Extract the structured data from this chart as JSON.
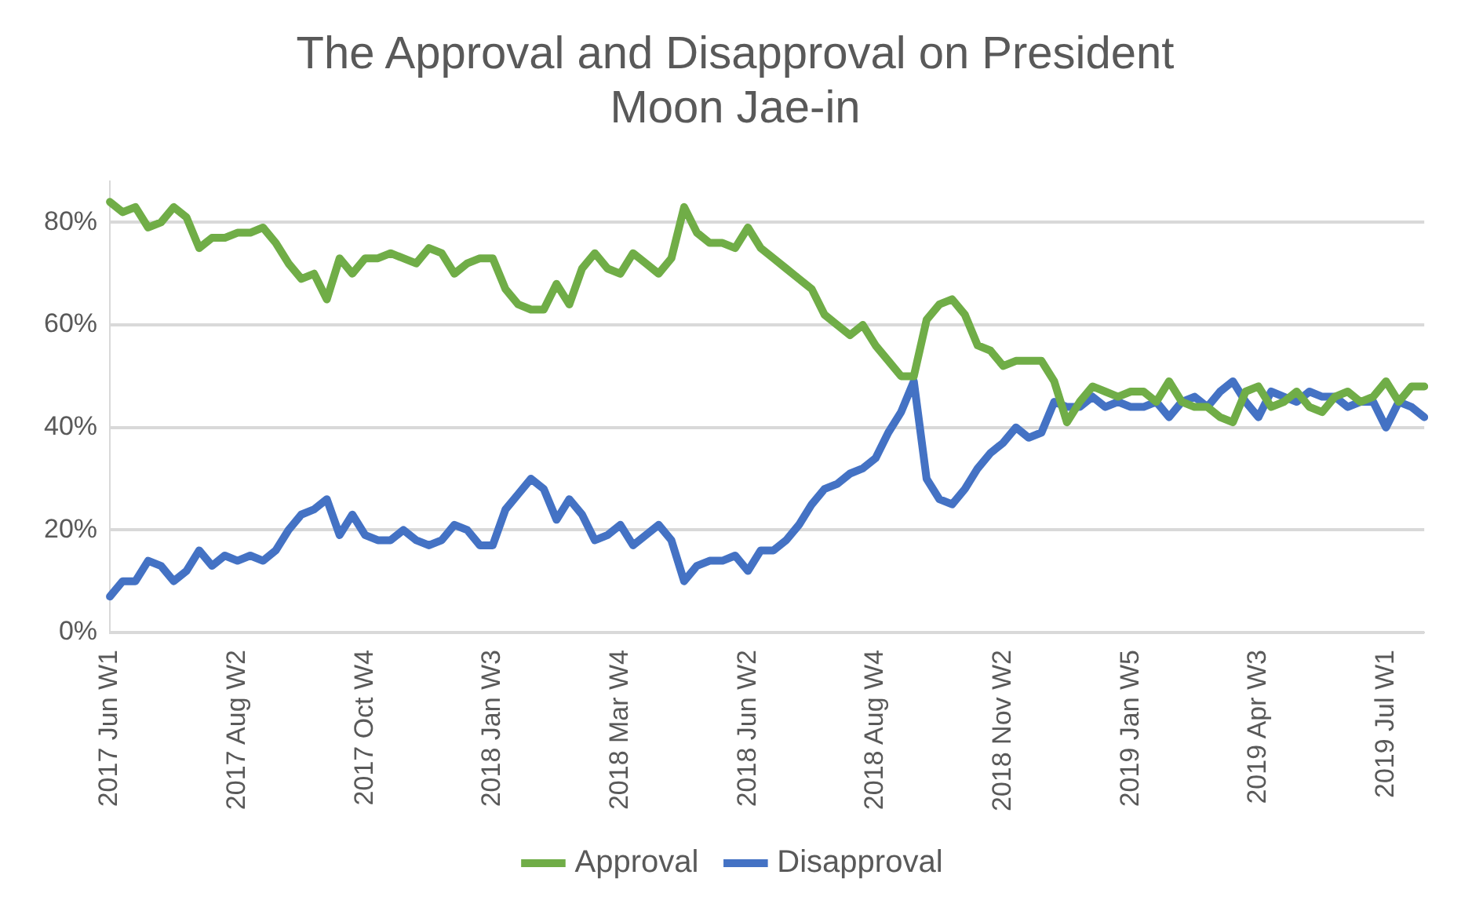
{
  "chart_data": {
    "type": "line",
    "title": "The Approval and Disapproval on President Moon Jae-in",
    "categories": [
      "2017 Jun W1",
      null,
      null,
      null,
      null,
      null,
      null,
      null,
      null,
      null,
      "2017 Aug W2",
      null,
      null,
      null,
      null,
      null,
      null,
      null,
      null,
      null,
      "2017 Oct W4",
      null,
      null,
      null,
      null,
      null,
      null,
      null,
      null,
      null,
      "2018 Jan W3",
      null,
      null,
      null,
      null,
      null,
      null,
      null,
      null,
      null,
      "2018 Mar W4",
      null,
      null,
      null,
      null,
      null,
      null,
      null,
      null,
      null,
      "2018 Jun W2",
      null,
      null,
      null,
      null,
      null,
      null,
      null,
      null,
      null,
      "2018 Aug W4",
      null,
      null,
      null,
      null,
      null,
      null,
      null,
      null,
      null,
      "2018 Nov W2",
      null,
      null,
      null,
      null,
      null,
      null,
      null,
      null,
      null,
      "2019 Jan W5",
      null,
      null,
      null,
      null,
      null,
      null,
      null,
      null,
      null,
      "2019 Apr W3",
      null,
      null,
      null,
      null,
      null,
      null,
      null,
      null,
      null,
      "2019 Jul W1",
      null,
      null,
      null
    ],
    "series": [
      {
        "name": "Approval",
        "color": "#70ad47",
        "values": [
          84,
          82,
          83,
          79,
          80,
          83,
          81,
          75,
          77,
          77,
          78,
          78,
          79,
          76,
          72,
          69,
          70,
          65,
          73,
          70,
          73,
          73,
          74,
          73,
          72,
          75,
          74,
          70,
          72,
          73,
          73,
          67,
          64,
          63,
          63,
          68,
          64,
          71,
          74,
          71,
          70,
          74,
          72,
          70,
          73,
          83,
          78,
          76,
          76,
          75,
          79,
          75,
          73,
          71,
          69,
          67,
          62,
          60,
          58,
          60,
          56,
          53,
          50,
          50,
          61,
          64,
          65,
          62,
          56,
          55,
          52,
          53,
          53,
          53,
          49,
          41,
          45,
          48,
          47,
          46,
          47,
          47,
          45,
          49,
          45,
          44,
          44,
          42,
          41,
          47,
          48,
          44,
          45,
          47,
          44,
          43,
          46,
          47,
          45,
          46,
          49,
          45,
          48,
          48
        ]
      },
      {
        "name": "Disapproval",
        "color": "#4472c4",
        "values": [
          7,
          10,
          10,
          14,
          13,
          10,
          12,
          16,
          13,
          15,
          14,
          15,
          14,
          16,
          20,
          23,
          24,
          26,
          19,
          23,
          19,
          18,
          18,
          20,
          18,
          17,
          18,
          21,
          20,
          17,
          17,
          24,
          27,
          30,
          28,
          22,
          26,
          23,
          18,
          19,
          21,
          17,
          19,
          21,
          18,
          10,
          13,
          14,
          14,
          15,
          12,
          16,
          16,
          18,
          21,
          25,
          28,
          29,
          31,
          32,
          34,
          39,
          43,
          49,
          30,
          26,
          25,
          28,
          32,
          35,
          37,
          40,
          38,
          39,
          45,
          44,
          44,
          46,
          44,
          45,
          44,
          44,
          45,
          42,
          45,
          46,
          44,
          47,
          49,
          45,
          42,
          47,
          46,
          45,
          47,
          46,
          46,
          44,
          45,
          45,
          40,
          45,
          44,
          42
        ]
      }
    ],
    "ylim": [
      0,
      88
    ],
    "yticks": [
      {
        "value": 0,
        "label": "0%"
      },
      {
        "value": 20,
        "label": "20%"
      },
      {
        "value": 40,
        "label": "40%"
      },
      {
        "value": 60,
        "label": "60%"
      },
      {
        "value": 80,
        "label": "80%"
      }
    ],
    "grid": "y",
    "legend": "bottom",
    "marker": "none",
    "line_style": "solid"
  }
}
